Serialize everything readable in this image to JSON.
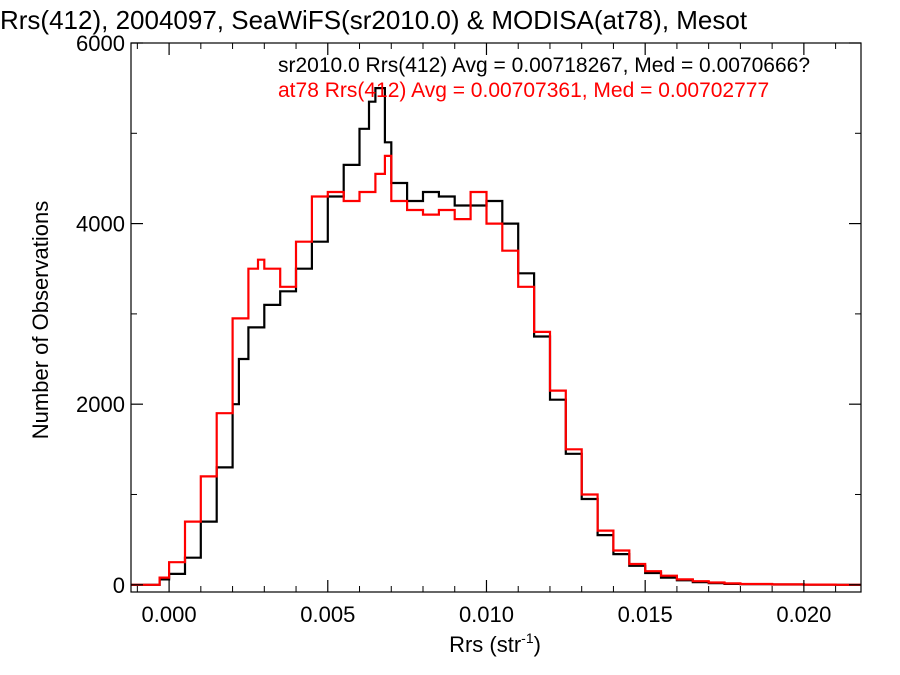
{
  "chart_data": {
    "type": "line",
    "title": "Rrs(412), 2004097, SeaWiFS(sr2010.0) & MODISA(at78), Mesot",
    "xlabel_main": "Rrs (str",
    "xlabel_sup": "-1",
    "xlabel_close": ")",
    "ylabel": "Number of Observations",
    "xlim": [
      -0.0012,
      0.0218
    ],
    "ylim": [
      -80,
      6000
    ],
    "xticks": [
      0.0,
      0.005,
      0.01,
      0.015,
      0.02
    ],
    "xtick_labels": [
      "0.000",
      "0.005",
      "0.010",
      "0.015",
      "0.020"
    ],
    "yticks": [
      0,
      2000,
      4000,
      6000
    ],
    "ytick_labels": [
      "0",
      "2000",
      "4000",
      "6000"
    ],
    "grid": false,
    "legend_placement": "top-right (inside plot)",
    "series": [
      {
        "label": "sr2010.0 Rrs(412) Avg = 0.00718267, Med = 0.0070666?",
        "color": "#000000",
        "x": [
          -0.0012,
          -0.0003,
          0.0,
          0.0005,
          0.001,
          0.0015,
          0.002,
          0.0022,
          0.0025,
          0.003,
          0.0035,
          0.004,
          0.0045,
          0.005,
          0.0055,
          0.006,
          0.0063,
          0.0065,
          0.0068,
          0.007,
          0.0075,
          0.008,
          0.0085,
          0.009,
          0.0095,
          0.01,
          0.0105,
          0.011,
          0.0115,
          0.012,
          0.0125,
          0.013,
          0.0135,
          0.014,
          0.0145,
          0.015,
          0.0155,
          0.016,
          0.0165,
          0.017,
          0.0175,
          0.018,
          0.019,
          0.02,
          0.021,
          0.0218
        ],
        "y": [
          0,
          60,
          120,
          300,
          700,
          1300,
          2000,
          2500,
          2850,
          3100,
          3250,
          3500,
          3800,
          4300,
          4650,
          5050,
          5350,
          5500,
          4900,
          4450,
          4250,
          4350,
          4300,
          4200,
          4200,
          4250,
          4000,
          3450,
          2750,
          2050,
          1450,
          950,
          550,
          340,
          210,
          130,
          80,
          50,
          30,
          18,
          10,
          6,
          3,
          1,
          0,
          0
        ]
      },
      {
        "label": "at78 Rrs(412) Avg = 0.00707361, Med = 0.00702777",
        "color": "#ff0000",
        "x": [
          -0.0012,
          -0.0003,
          0.0,
          0.0005,
          0.001,
          0.0015,
          0.002,
          0.0025,
          0.0028,
          0.003,
          0.0035,
          0.004,
          0.0045,
          0.005,
          0.0055,
          0.006,
          0.0065,
          0.0068,
          0.007,
          0.0075,
          0.008,
          0.0085,
          0.009,
          0.0095,
          0.01,
          0.0105,
          0.011,
          0.0115,
          0.012,
          0.0125,
          0.013,
          0.0135,
          0.014,
          0.0145,
          0.015,
          0.0155,
          0.016,
          0.0165,
          0.017,
          0.0175,
          0.018,
          0.019,
          0.02,
          0.021,
          0.0218
        ],
        "y": [
          0,
          80,
          250,
          700,
          1200,
          1900,
          2950,
          3500,
          3600,
          3500,
          3300,
          3800,
          4300,
          4350,
          4250,
          4350,
          4550,
          4750,
          4250,
          4150,
          4100,
          4150,
          4050,
          4350,
          4000,
          3700,
          3300,
          2800,
          2150,
          1500,
          1000,
          600,
          380,
          230,
          150,
          100,
          60,
          40,
          25,
          15,
          9,
          4,
          2,
          0,
          0
        ]
      }
    ]
  }
}
